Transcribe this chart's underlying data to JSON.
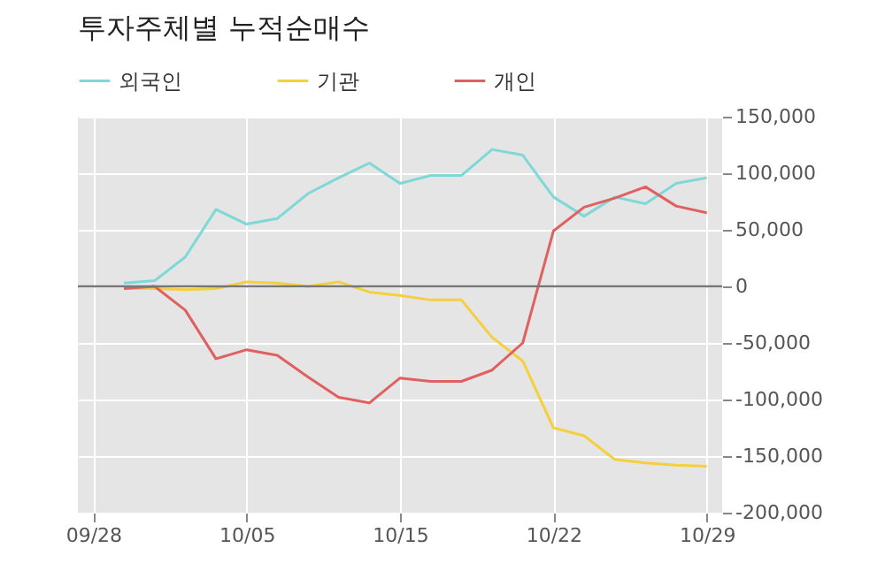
{
  "chart_data": {
    "type": "line",
    "title": "투자주체별 누적순매수",
    "categories": [
      "09/28",
      null,
      null,
      null,
      null,
      "10/05",
      null,
      null,
      null,
      null,
      "10/15",
      null,
      null,
      null,
      null,
      "10/22",
      null,
      null,
      null,
      null,
      "10/29"
    ],
    "ylim": [
      -200000,
      150000
    ],
    "yticks": [
      {
        "value": -200000,
        "label": "-200,000"
      },
      {
        "value": -150000,
        "label": "-150,000"
      },
      {
        "value": -100000,
        "label": "-100,000"
      },
      {
        "value": -50000,
        "label": "-50,000"
      },
      0,
      {
        "value": 50000,
        "label": "50,000"
      },
      {
        "value": 100000,
        "label": "100,000"
      },
      {
        "value": 150000,
        "label": "150,000"
      }
    ],
    "series": [
      {
        "name": "외국인",
        "color": "#7fd8d8",
        "values": [
          null,
          3000,
          5000,
          26000,
          68000,
          55000,
          60000,
          82000,
          96000,
          109000,
          91000,
          98000,
          98000,
          121000,
          116000,
          79000,
          62000,
          79000,
          73000,
          91000,
          96000
        ]
      },
      {
        "name": "기관",
        "color": "#f5cf3c",
        "values": [
          null,
          -2000,
          -2000,
          -3000,
          -2000,
          4000,
          3000,
          0,
          4000,
          -5000,
          -8000,
          -12000,
          -12000,
          -45000,
          -66000,
          -125000,
          -132000,
          -153000,
          -156000,
          -158000,
          -159000
        ]
      },
      {
        "name": "개인",
        "color": "#e06060",
        "values": [
          null,
          -2000,
          0,
          -21000,
          -64000,
          -56000,
          -61000,
          -80000,
          -98000,
          -103000,
          -81000,
          -84000,
          -84000,
          -74000,
          -50000,
          49000,
          70000,
          78000,
          88000,
          71000,
          65000
        ]
      }
    ],
    "ref_lines": [
      {
        "axis": "y",
        "value": 0,
        "color": "#777777"
      }
    ],
    "grid": true,
    "legend": "top left"
  }
}
